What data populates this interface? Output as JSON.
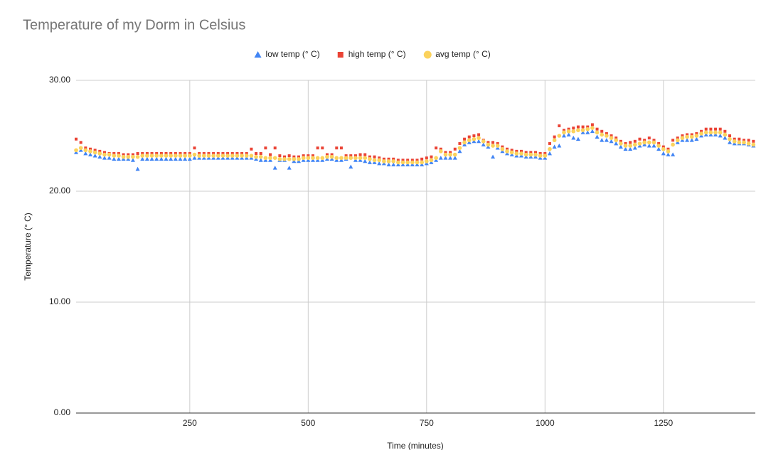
{
  "chart_data": {
    "type": "scatter",
    "title": "Temperature of my Dorm in Celsius",
    "x_label": "Time (minutes)",
    "y_label": "Temperature (° C)",
    "x": [
      10,
      20,
      30,
      40,
      50,
      60,
      70,
      80,
      90,
      100,
      110,
      120,
      130,
      140,
      150,
      160,
      170,
      180,
      190,
      200,
      210,
      220,
      230,
      240,
      250,
      260,
      270,
      280,
      290,
      300,
      310,
      320,
      330,
      340,
      350,
      360,
      370,
      380,
      390,
      400,
      410,
      420,
      430,
      440,
      450,
      460,
      470,
      480,
      490,
      500,
      510,
      520,
      530,
      540,
      550,
      560,
      570,
      580,
      590,
      600,
      610,
      620,
      630,
      640,
      650,
      660,
      670,
      680,
      690,
      700,
      710,
      720,
      730,
      740,
      750,
      760,
      770,
      780,
      790,
      800,
      810,
      820,
      830,
      840,
      850,
      860,
      870,
      880,
      890,
      900,
      910,
      920,
      930,
      940,
      950,
      960,
      970,
      980,
      990,
      1000,
      1010,
      1020,
      1030,
      1040,
      1050,
      1060,
      1070,
      1080,
      1090,
      1100,
      1110,
      1120,
      1130,
      1140,
      1150,
      1160,
      1170,
      1180,
      1190,
      1200,
      1210,
      1220,
      1230,
      1240,
      1250,
      1260,
      1270,
      1280,
      1290,
      1300,
      1310,
      1320,
      1330,
      1340,
      1350,
      1360,
      1370,
      1380,
      1390,
      1400,
      1410,
      1420,
      1430,
      1440
    ],
    "series": [
      {
        "name": "low temp (° C)",
        "color": "#4285f4",
        "marker": "triangle",
        "values": [
          23.5,
          23.7,
          23.4,
          23.3,
          23.2,
          23.1,
          23.0,
          23.0,
          22.9,
          22.9,
          22.9,
          22.9,
          22.8,
          22.0,
          22.9,
          22.9,
          22.9,
          22.9,
          22.9,
          22.9,
          22.9,
          22.9,
          22.9,
          22.9,
          22.9,
          23.0,
          23.0,
          23.0,
          23.0,
          23.0,
          23.0,
          23.0,
          23.0,
          23.0,
          23.0,
          23.0,
          23.0,
          23.0,
          22.9,
          22.8,
          22.8,
          22.8,
          22.1,
          22.8,
          22.8,
          22.1,
          22.7,
          22.7,
          22.8,
          22.8,
          22.8,
          22.8,
          22.8,
          22.9,
          22.9,
          22.8,
          22.8,
          22.9,
          22.2,
          22.8,
          22.8,
          22.7,
          22.6,
          22.6,
          22.5,
          22.5,
          22.4,
          22.4,
          22.4,
          22.4,
          22.4,
          22.4,
          22.4,
          22.4,
          22.5,
          22.6,
          22.8,
          23.0,
          23.0,
          23.0,
          23.0,
          23.6,
          24.2,
          24.4,
          24.5,
          24.5,
          24.2,
          24.0,
          23.1,
          23.9,
          23.6,
          23.4,
          23.3,
          23.2,
          23.2,
          23.1,
          23.1,
          23.1,
          23.0,
          23.0,
          23.4,
          24.0,
          24.1,
          25.0,
          25.1,
          24.8,
          24.7,
          25.3,
          25.3,
          25.4,
          24.9,
          24.6,
          24.6,
          24.5,
          24.3,
          24.0,
          23.8,
          23.8,
          23.9,
          24.1,
          24.2,
          24.1,
          24.1,
          23.8,
          23.4,
          23.3,
          23.3,
          24.4,
          24.6,
          24.6,
          24.6,
          24.7,
          25.0,
          25.1,
          25.1,
          25.1,
          25.0,
          24.8,
          24.4,
          24.3,
          24.3,
          24.3,
          24.2,
          24.1
        ]
      },
      {
        "name": "high temp (° C)",
        "color": "#ea4335",
        "marker": "square",
        "values": [
          24.7,
          24.4,
          23.9,
          23.8,
          23.7,
          23.6,
          23.5,
          23.4,
          23.4,
          23.4,
          23.3,
          23.3,
          23.3,
          23.4,
          23.4,
          23.4,
          23.4,
          23.4,
          23.4,
          23.4,
          23.4,
          23.4,
          23.4,
          23.4,
          23.4,
          23.9,
          23.4,
          23.4,
          23.4,
          23.4,
          23.4,
          23.4,
          23.4,
          23.4,
          23.4,
          23.4,
          23.4,
          23.8,
          23.4,
          23.4,
          23.9,
          23.3,
          23.9,
          23.2,
          23.1,
          23.2,
          23.1,
          23.1,
          23.2,
          23.2,
          23.2,
          23.9,
          23.9,
          23.3,
          23.3,
          23.9,
          23.9,
          23.2,
          23.2,
          23.2,
          23.3,
          23.3,
          23.1,
          23.1,
          23.0,
          22.9,
          22.9,
          22.9,
          22.8,
          22.8,
          22.8,
          22.8,
          22.8,
          22.9,
          23.0,
          23.1,
          23.9,
          23.8,
          23.5,
          23.5,
          23.8,
          24.3,
          24.7,
          24.9,
          25.0,
          25.1,
          24.6,
          24.4,
          24.4,
          24.3,
          24.0,
          23.8,
          23.7,
          23.6,
          23.6,
          23.5,
          23.5,
          23.5,
          23.4,
          23.4,
          24.3,
          24.9,
          25.9,
          25.5,
          25.6,
          25.7,
          25.8,
          25.8,
          25.8,
          26.0,
          25.6,
          25.4,
          25.2,
          25.0,
          24.8,
          24.5,
          24.3,
          24.4,
          24.5,
          24.7,
          24.6,
          24.8,
          24.6,
          24.3,
          24.0,
          23.8,
          24.6,
          24.8,
          25.0,
          25.1,
          25.1,
          25.2,
          25.4,
          25.6,
          25.6,
          25.6,
          25.6,
          25.4,
          25.0,
          24.7,
          24.7,
          24.6,
          24.6,
          24.5
        ]
      },
      {
        "name": "avg temp (° C)",
        "color": "#fbd25c",
        "marker": "circle",
        "values": [
          23.7,
          23.9,
          23.7,
          23.6,
          23.5,
          23.4,
          23.3,
          23.3,
          23.2,
          23.2,
          23.1,
          23.1,
          23.1,
          23.1,
          23.2,
          23.2,
          23.2,
          23.2,
          23.2,
          23.2,
          23.2,
          23.2,
          23.2,
          23.2,
          23.2,
          23.3,
          23.2,
          23.2,
          23.2,
          23.2,
          23.2,
          23.2,
          23.2,
          23.2,
          23.2,
          23.2,
          23.2,
          23.2,
          23.1,
          23.1,
          23.0,
          23.0,
          23.0,
          22.9,
          22.9,
          22.9,
          22.9,
          22.9,
          23.0,
          23.0,
          23.0,
          23.0,
          23.0,
          23.1,
          23.1,
          23.0,
          23.0,
          23.0,
          23.0,
          23.0,
          23.0,
          23.0,
          22.9,
          22.8,
          22.8,
          22.7,
          22.7,
          22.7,
          22.6,
          22.6,
          22.6,
          22.6,
          22.6,
          22.6,
          22.7,
          22.8,
          23.0,
          23.6,
          23.3,
          23.3,
          23.3,
          23.9,
          24.4,
          24.6,
          24.7,
          24.8,
          24.5,
          24.2,
          24.1,
          24.1,
          23.8,
          23.6,
          23.5,
          23.4,
          23.4,
          23.3,
          23.3,
          23.3,
          23.2,
          23.2,
          23.8,
          24.6,
          25.0,
          25.3,
          25.4,
          25.4,
          25.5,
          25.5,
          25.6,
          25.7,
          25.3,
          25.1,
          25.0,
          24.8,
          24.6,
          24.3,
          24.1,
          24.1,
          24.2,
          24.3,
          24.4,
          24.4,
          24.4,
          24.1,
          23.8,
          23.6,
          24.2,
          24.6,
          24.8,
          24.9,
          24.9,
          25.0,
          25.2,
          25.3,
          25.3,
          25.3,
          25.3,
          25.1,
          24.7,
          24.5,
          24.4,
          24.4,
          24.3,
          24.2
        ]
      }
    ],
    "xlim": [
      10,
      1444
    ],
    "xticks": [
      250,
      500,
      750,
      1000,
      1250
    ],
    "ylim": [
      0,
      30
    ],
    "yticks": [
      {
        "value": 0,
        "label": "0.00"
      },
      {
        "value": 10,
        "label": "10.00"
      },
      {
        "value": 20,
        "label": "20.00"
      },
      {
        "value": 30,
        "label": "30.00"
      }
    ],
    "grid": true,
    "legend": "top"
  }
}
